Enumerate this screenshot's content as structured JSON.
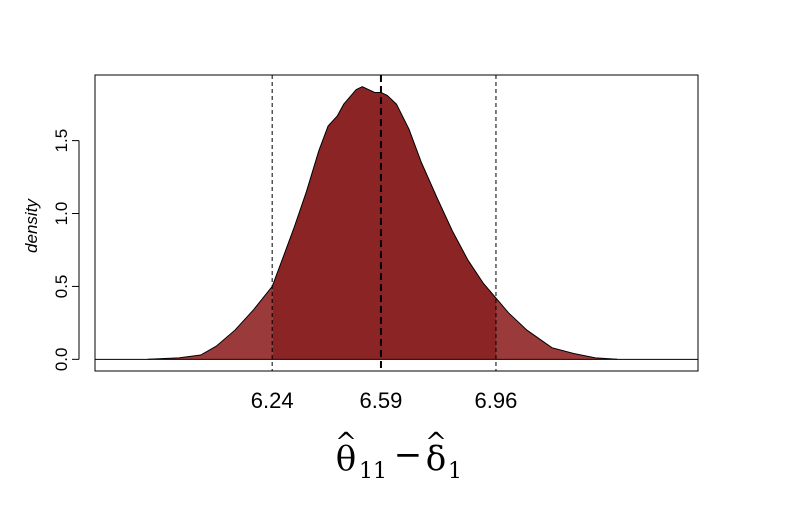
{
  "chart_data": {
    "type": "area",
    "title": "",
    "ylabel": "density",
    "xlabel": {
      "theta": "θ",
      "theta_sub": "11",
      "minus": "−",
      "delta": "δ",
      "delta_sub": "1",
      "hat": "^"
    },
    "xlim": [
      5.67,
      7.61
    ],
    "ylim": [
      -0.08,
      1.95
    ],
    "y_ticks": [
      {
        "value": 0.0,
        "label": "0.0"
      },
      {
        "value": 0.5,
        "label": "0.5"
      },
      {
        "value": 1.0,
        "label": "1.0"
      },
      {
        "value": 1.5,
        "label": "1.5"
      }
    ],
    "x_ticks": [
      {
        "value": 6.24,
        "label": "6.24"
      },
      {
        "value": 6.59,
        "label": "6.59"
      },
      {
        "value": 6.96,
        "label": "6.96"
      }
    ],
    "reference_lines": [
      {
        "x": 6.24,
        "style": "dashed"
      },
      {
        "x": 6.59,
        "style": "dashed-bold"
      },
      {
        "x": 6.96,
        "style": "dashed"
      }
    ],
    "interval": [
      6.24,
      6.96
    ],
    "density_x": [
      5.84,
      5.94,
      6.01,
      6.06,
      6.12,
      6.18,
      6.24,
      6.27,
      6.31,
      6.35,
      6.39,
      6.42,
      6.45,
      6.47,
      6.49,
      6.51,
      6.53,
      6.55,
      6.57,
      6.59,
      6.61,
      6.64,
      6.68,
      6.72,
      6.77,
      6.82,
      6.87,
      6.92,
      6.96,
      7.0,
      7.06,
      7.14,
      7.21,
      7.28,
      7.35
    ],
    "density_y": [
      0.0,
      0.01,
      0.03,
      0.09,
      0.2,
      0.34,
      0.5,
      0.67,
      0.9,
      1.15,
      1.43,
      1.6,
      1.67,
      1.75,
      1.8,
      1.85,
      1.87,
      1.85,
      1.83,
      1.83,
      1.81,
      1.75,
      1.58,
      1.35,
      1.11,
      0.88,
      0.68,
      0.52,
      0.42,
      0.32,
      0.2,
      0.08,
      0.04,
      0.01,
      0.0
    ],
    "colors": {
      "fill": "#8b2525",
      "fill_tail": "#9b3a3a",
      "outline": "#000000"
    },
    "legend": "none",
    "grid": false
  }
}
